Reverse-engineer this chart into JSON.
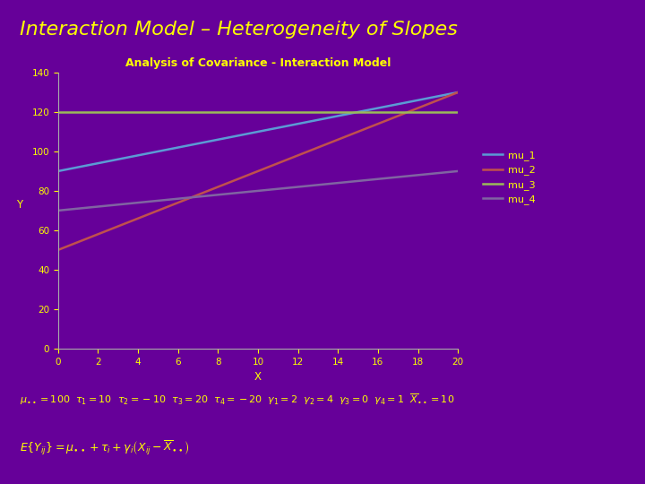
{
  "title_main": "Interaction Model – Heterogeneity of Slopes",
  "chart_title": "Analysis of Covariance - Interaction Model",
  "background_color": "#660099",
  "plot_bg_color": "#660099",
  "title_color": "#FFFF00",
  "chart_title_color": "#FFFF00",
  "axis_label_color": "#FFFF00",
  "tick_color": "#FFFF00",
  "xlabel": "X",
  "ylabel": "Y",
  "xlim": [
    0,
    20
  ],
  "ylim": [
    0,
    140
  ],
  "xticks": [
    0,
    2,
    4,
    6,
    8,
    10,
    12,
    14,
    16,
    18,
    20
  ],
  "yticks": [
    0,
    20,
    40,
    60,
    80,
    100,
    120,
    140
  ],
  "mu_dot": 100,
  "X_bar": 10,
  "taus": [
    10,
    -10,
    20,
    -20
  ],
  "gammas": [
    2,
    4,
    0,
    1
  ],
  "line_colors": [
    "#5B9BD5",
    "#C0504D",
    "#9BBB59",
    "#8064A2"
  ],
  "line_labels": [
    "mu_1",
    "mu_2",
    "mu_3",
    "mu_4"
  ],
  "legend_text_color": "#FFFF00",
  "axis_spine_color": "#AAAAAA"
}
